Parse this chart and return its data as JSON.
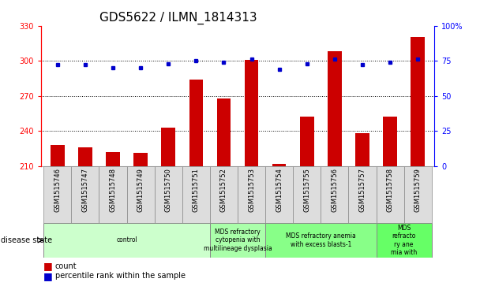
{
  "title": "GDS5622 / ILMN_1814313",
  "samples": [
    "GSM1515746",
    "GSM1515747",
    "GSM1515748",
    "GSM1515749",
    "GSM1515750",
    "GSM1515751",
    "GSM1515752",
    "GSM1515753",
    "GSM1515754",
    "GSM1515755",
    "GSM1515756",
    "GSM1515757",
    "GSM1515758",
    "GSM1515759"
  ],
  "counts": [
    228,
    226,
    222,
    221,
    243,
    284,
    268,
    301,
    212,
    252,
    308,
    238,
    252,
    320
  ],
  "percentile_ranks": [
    72,
    72,
    70,
    70,
    73,
    75,
    74,
    76,
    69,
    73,
    76,
    72,
    74,
    76
  ],
  "ylim_left": [
    210,
    330
  ],
  "ylim_right": [
    0,
    100
  ],
  "yticks_left": [
    210,
    240,
    270,
    300,
    330
  ],
  "yticks_right": [
    0,
    25,
    50,
    75,
    100
  ],
  "bar_color": "#cc0000",
  "dot_color": "#0000cc",
  "bg_color": "#ffffff",
  "disease_groups": [
    {
      "label": "control",
      "start": 0,
      "end": 6,
      "color": "#ccffcc"
    },
    {
      "label": "MDS refractory\ncytopenia with\nmultilineage dysplasia",
      "start": 6,
      "end": 8,
      "color": "#aaffaa"
    },
    {
      "label": "MDS refractory anemia\nwith excess blasts-1",
      "start": 8,
      "end": 12,
      "color": "#88ff88"
    },
    {
      "label": "MDS\nrefracto\nry ane\nmia with",
      "start": 12,
      "end": 14,
      "color": "#66ff66"
    }
  ],
  "xlabel_disease": "disease state",
  "legend_count": "count",
  "legend_percentile": "percentile rank within the sample",
  "title_fontsize": 11,
  "tick_fontsize": 7,
  "label_fontsize": 6,
  "disease_fontsize": 5.5
}
